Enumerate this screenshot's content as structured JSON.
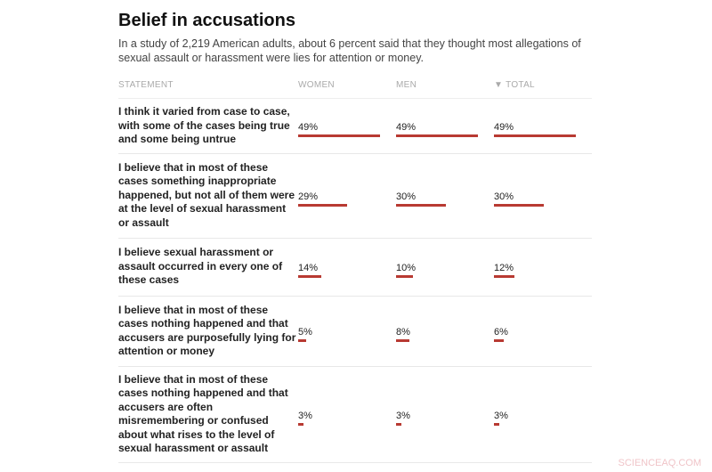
{
  "title": "Belief in accusations",
  "subtitle": "In a study of 2,219 American adults, about 6 percent said that they thought most allegations of sexual assault or harassment were lies for attention or money.",
  "watermark": "SCIENCEAQ.COM",
  "chart_data": {
    "type": "table",
    "columns": [
      "STATEMENT",
      "WOMEN",
      "MEN",
      "▼ TOTAL"
    ],
    "sort": {
      "column": "TOTAL",
      "direction": "descending"
    },
    "bar_color": "#b83a32",
    "rows": [
      {
        "statement": "I think it varied from case to case, with some of the cases being true and some being untrue",
        "women": 49,
        "men": 49,
        "total": 49,
        "women_label": "49%",
        "men_label": "49%",
        "total_label": "49%"
      },
      {
        "statement": "I believe that in most of these cases something inappropriate happened, but not all of them were at the level of sexual harassment or assault",
        "women": 29,
        "men": 30,
        "total": 30,
        "women_label": "29%",
        "men_label": "30%",
        "total_label": "30%"
      },
      {
        "statement": "I believe sexual harassment or assault occurred in every one of these cases",
        "women": 14,
        "men": 10,
        "total": 12,
        "women_label": "14%",
        "men_label": "10%",
        "total_label": "12%"
      },
      {
        "statement": "I believe that in most of these cases nothing happened and that accusers are purposefully lying for attention or money",
        "women": 5,
        "men": 8,
        "total": 6,
        "women_label": "5%",
        "men_label": "8%",
        "total_label": "6%"
      },
      {
        "statement": "I believe that in most of these cases nothing happened and that accusers are often misremembering or confused about what rises to the level of sexual harassment or assault",
        "women": 3,
        "men": 3,
        "total": 3,
        "women_label": "3%",
        "men_label": "3%",
        "total_label": "3%"
      }
    ]
  }
}
